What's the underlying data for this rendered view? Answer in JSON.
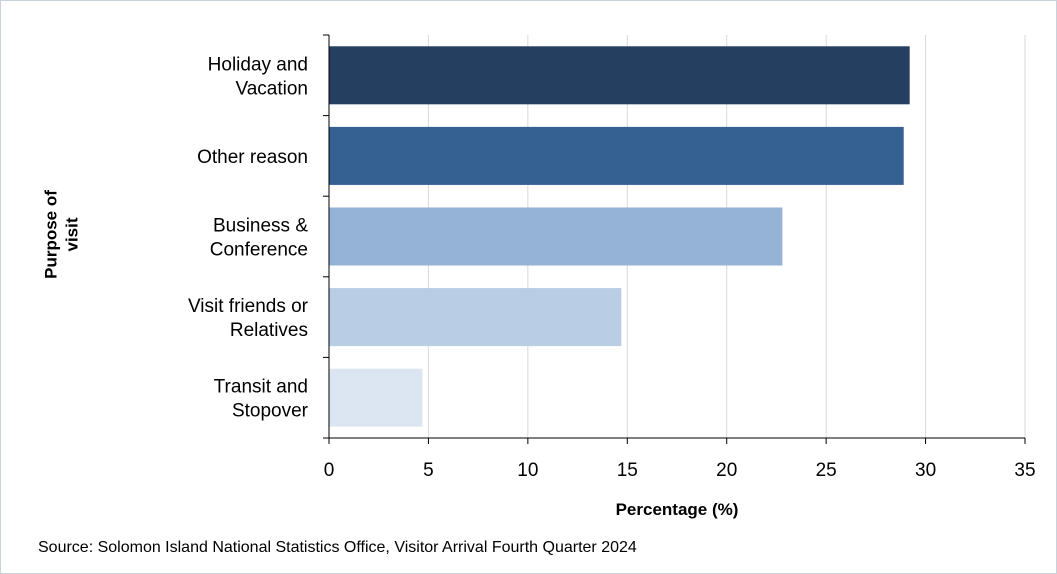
{
  "chart_data": {
    "type": "bar",
    "orientation": "horizontal",
    "categories": [
      [
        "Holiday and",
        "Vacation"
      ],
      [
        "Other reason"
      ],
      [
        "Business &",
        "Conference"
      ],
      [
        "Visit friends or",
        "Relatives"
      ],
      [
        "Transit and",
        "Stopover"
      ]
    ],
    "values": [
      29.2,
      28.9,
      22.8,
      14.7,
      4.7
    ],
    "bar_colors": [
      "#253f61",
      "#356092",
      "#95b3d7",
      "#b9cde5",
      "#dce6f2"
    ],
    "xlabel": "Percentage (%)",
    "ylabel": [
      "Purpose of",
      "visit"
    ],
    "xlim": [
      0,
      35
    ],
    "xticks": [
      0,
      5,
      10,
      15,
      20,
      25,
      30,
      35
    ],
    "grid": "vertical",
    "legend": "none"
  },
  "source": "Source: Solomon Island National Statistics Office, Visitor Arrival  Fourth Quarter 2024"
}
